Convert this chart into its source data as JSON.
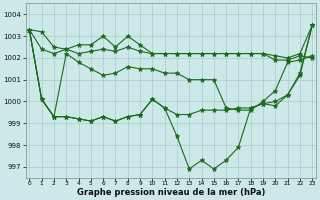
{
  "xlabel": "Graphe pression niveau de la mer (hPa)",
  "hours": [
    0,
    1,
    2,
    3,
    4,
    5,
    6,
    7,
    8,
    9,
    10,
    11,
    12,
    13,
    14,
    15,
    16,
    17,
    18,
    19,
    20,
    21,
    22,
    23
  ],
  "line_max": [
    1003.3,
    1003.2,
    1002.5,
    1002.4,
    1002.6,
    1002.6,
    1003.0,
    1002.5,
    1003.0,
    1002.6,
    1002.2,
    1002.2,
    1002.2,
    1002.2,
    1002.2,
    1002.2,
    1002.2,
    1002.2,
    1002.2,
    1002.2,
    1002.1,
    1002.0,
    1002.2,
    1003.5
  ],
  "line_upper": [
    1003.3,
    1002.4,
    1002.2,
    1002.4,
    1002.2,
    1002.3,
    1002.4,
    1002.3,
    1002.5,
    1002.3,
    1002.2,
    1002.2,
    1002.2,
    1002.2,
    1002.2,
    1002.2,
    1002.2,
    1002.2,
    1002.2,
    1002.2,
    1001.9,
    1001.9,
    1002.1,
    1002.0
  ],
  "line_mid": [
    1003.3,
    1000.1,
    999.3,
    1002.2,
    1001.8,
    1001.5,
    1001.2,
    1001.3,
    1001.6,
    1001.5,
    1001.5,
    1001.3,
    1001.3,
    1001.0,
    1001.0,
    1001.0,
    999.7,
    999.6,
    999.6,
    1000.0,
    1000.5,
    1001.8,
    1001.9,
    1002.1
  ],
  "line_lower": [
    1003.3,
    1000.1,
    999.3,
    999.3,
    999.2,
    999.1,
    999.3,
    999.1,
    999.3,
    999.4,
    1000.1,
    999.7,
    999.4,
    999.4,
    999.6,
    999.6,
    999.6,
    999.7,
    999.7,
    999.9,
    1000.0,
    1000.3,
    1001.2,
    1003.5
  ],
  "line_min": [
    1003.3,
    1000.1,
    999.3,
    999.3,
    999.2,
    999.1,
    999.3,
    999.1,
    999.3,
    999.4,
    1000.1,
    999.7,
    998.4,
    996.9,
    997.3,
    996.9,
    997.3,
    997.9,
    999.7,
    999.9,
    999.8,
    1000.3,
    1001.3,
    1003.5
  ],
  "ylim_min": 996.5,
  "ylim_max": 1004.5,
  "yticks": [
    997,
    998,
    999,
    1000,
    1001,
    1002,
    1003,
    1004
  ],
  "line_color": "#1a6b1a",
  "bg_color": "#cce8e8",
  "grid_color": "#aacccc",
  "marker": "*",
  "markersize": 3.5,
  "linewidth": 0.8
}
